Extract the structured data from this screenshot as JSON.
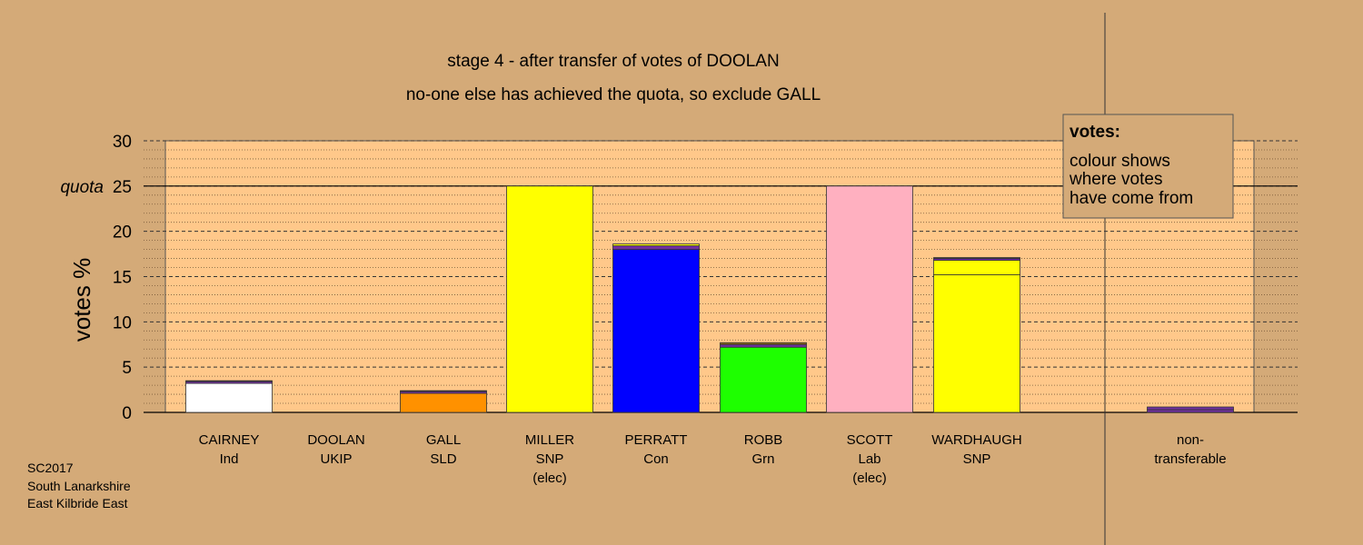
{
  "chart_data": {
    "type": "bar",
    "title": "stage 4 - after transfer of votes of DOOLAN",
    "subtitle": "no-one else has achieved the quota, so exclude GALL",
    "ylabel": "votes %",
    "ylim": [
      0,
      30
    ],
    "yticks": [
      0,
      5,
      10,
      15,
      20,
      25,
      30
    ],
    "quota": 25,
    "quota_label": "quota",
    "categories": [
      {
        "lines": [
          "CAIRNEY",
          "Ind"
        ]
      },
      {
        "lines": [
          "DOOLAN",
          "UKIP"
        ]
      },
      {
        "lines": [
          "GALL",
          "SLD"
        ]
      },
      {
        "lines": [
          "MILLER",
          "SNP",
          "(elec)"
        ]
      },
      {
        "lines": [
          "PERRATT",
          "Con"
        ]
      },
      {
        "lines": [
          "ROBB",
          "Grn"
        ]
      },
      {
        "lines": [
          "SCOTT",
          "Lab",
          "(elec)"
        ]
      },
      {
        "lines": [
          "WARDHAUGH",
          "SNP"
        ]
      }
    ],
    "bars": [
      {
        "segments": [
          {
            "value": 3.2,
            "color": "#ffffff"
          },
          {
            "value": 0.2,
            "color": "#7030a0"
          },
          {
            "value": 0.1,
            "color": "#222222"
          }
        ]
      },
      {
        "segments": []
      },
      {
        "segments": [
          {
            "value": 2.1,
            "color": "#ff9100"
          },
          {
            "value": 0.2,
            "color": "#7030a0"
          },
          {
            "value": 0.1,
            "color": "#222222"
          }
        ]
      },
      {
        "segments": [
          {
            "value": 25.0,
            "color": "#ffff00"
          }
        ]
      },
      {
        "segments": [
          {
            "value": 18.0,
            "color": "#0000ff"
          },
          {
            "value": 0.4,
            "color": "#7030a0"
          },
          {
            "value": 0.2,
            "color": "#ffff00"
          }
        ]
      },
      {
        "segments": [
          {
            "value": 7.2,
            "color": "#1eff00"
          },
          {
            "value": 0.3,
            "color": "#7030a0"
          },
          {
            "value": 0.2,
            "color": "#8b6914"
          }
        ]
      },
      {
        "segments": [
          {
            "value": 25.0,
            "color": "#ffb0c0"
          }
        ]
      },
      {
        "segments": [
          {
            "value": 15.2,
            "color": "#ffff00"
          },
          {
            "value": 1.6,
            "color": "#ffff00"
          },
          {
            "value": 0.2,
            "color": "#7030a0"
          },
          {
            "value": 0.1,
            "color": "#222222"
          }
        ]
      }
    ],
    "nontransferable": {
      "lines": [
        "non-",
        "transferable"
      ],
      "segments": [
        {
          "value": 0.3,
          "color": "#7030a0"
        },
        {
          "value": 0.3,
          "color": "#7030a0"
        }
      ]
    },
    "legend": {
      "heading": "votes:",
      "lines": [
        "colour shows",
        "where votes",
        "have come from"
      ],
      "placement": "top-right"
    },
    "grid": true
  },
  "footer": [
    "SC2017",
    "South Lanarkshire",
    "East Kilbride East"
  ]
}
